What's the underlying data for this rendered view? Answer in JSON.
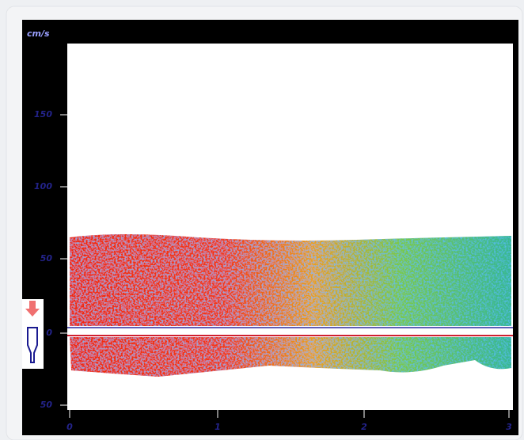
{
  "axis": {
    "unit": "cm/s",
    "y_labels": [
      "150",
      "100",
      "50",
      "0",
      "50"
    ],
    "x_labels": [
      "0",
      "1",
      "2",
      "3"
    ]
  }
}
